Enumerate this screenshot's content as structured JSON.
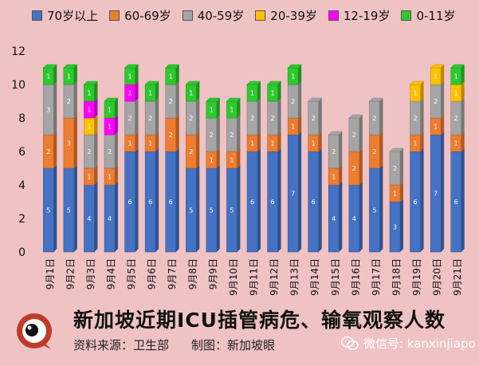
{
  "chart_data": {
    "type": "bar",
    "stacked": true,
    "categories": [
      "9月1日",
      "9月2日",
      "9月3日",
      "9月4日",
      "9月5日",
      "9月6日",
      "9月7日",
      "9月8日",
      "9月9日",
      "9月10日",
      "9月11日",
      "9月12日",
      "9月13日",
      "9月14日",
      "9月15日",
      "9月16日",
      "9月17日",
      "9月18日",
      "9月19日",
      "9月20日",
      "9月21日"
    ],
    "ylim": [
      0,
      12
    ],
    "yticks": [
      0,
      2,
      4,
      6,
      8,
      10,
      12
    ],
    "grid": false,
    "legend_position": "top",
    "series": [
      {
        "name": "70岁以上",
        "color": "#4472c4",
        "values": [
          5,
          5,
          4,
          4,
          6,
          6,
          6,
          5,
          5,
          5,
          6,
          6,
          7,
          6,
          4,
          4,
          5,
          3,
          6,
          7,
          6
        ]
      },
      {
        "name": "60-69岁",
        "color": "#ed7d31",
        "values": [
          2,
          3,
          1,
          1,
          1,
          1,
          2,
          2,
          1,
          1,
          1,
          1,
          1,
          1,
          1,
          2,
          2,
          1,
          1,
          1,
          1
        ]
      },
      {
        "name": "40-59岁",
        "color": "#a5a5a5",
        "values": [
          3,
          2,
          2,
          2,
          2,
          2,
          2,
          2,
          2,
          2,
          2,
          2,
          2,
          2,
          2,
          2,
          2,
          2,
          2,
          2,
          2
        ]
      },
      {
        "name": "20-39岁",
        "color": "#ffc000",
        "values": [
          0,
          0,
          1,
          0,
          0,
          0,
          0,
          0,
          0,
          0,
          0,
          0,
          0,
          0,
          0,
          0,
          0,
          0,
          1,
          1,
          1
        ]
      },
      {
        "name": "12-19岁",
        "color": "#ff00ff",
        "values": [
          0,
          0,
          1,
          1,
          1,
          0,
          0,
          0,
          0,
          0,
          0,
          0,
          0,
          0,
          0,
          0,
          0,
          0,
          0,
          0,
          0
        ]
      },
      {
        "name": "0-11岁",
        "color": "#2ec92e",
        "values": [
          1,
          1,
          1,
          1,
          1,
          1,
          1,
          1,
          1,
          1,
          1,
          1,
          1,
          0,
          0,
          0,
          0,
          0,
          0,
          0,
          1
        ]
      }
    ]
  },
  "footer": {
    "title": "新加坡近期ICU插管病危、输氧观察人数",
    "source": "资料来源：卫生部",
    "credit": "制图：新加坡眼"
  },
  "logo": {
    "text": "新加坡眼"
  },
  "watermark": {
    "text": "微信号: kanxinjiapo",
    "icon": "wechat-icon"
  }
}
